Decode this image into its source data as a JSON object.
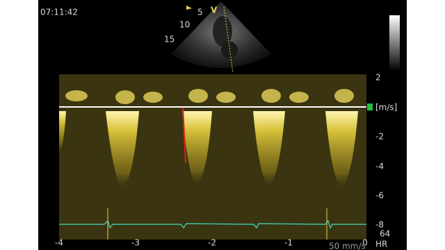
{
  "header": {
    "time": "07:11:42"
  },
  "sector": {
    "depth_labels": [
      "5",
      "10",
      "15"
    ],
    "mode_label": "V"
  },
  "spectrum": {
    "y_labels": [
      "2",
      "-2",
      "-4",
      "-6",
      "-8"
    ],
    "unit": "[m/s]",
    "x_labels": [
      "-4",
      "-3",
      "-2",
      "-1",
      "0"
    ],
    "heart_rate": "64",
    "heart_rate_label": "HR",
    "sweep_speed": "50 mm/s"
  }
}
